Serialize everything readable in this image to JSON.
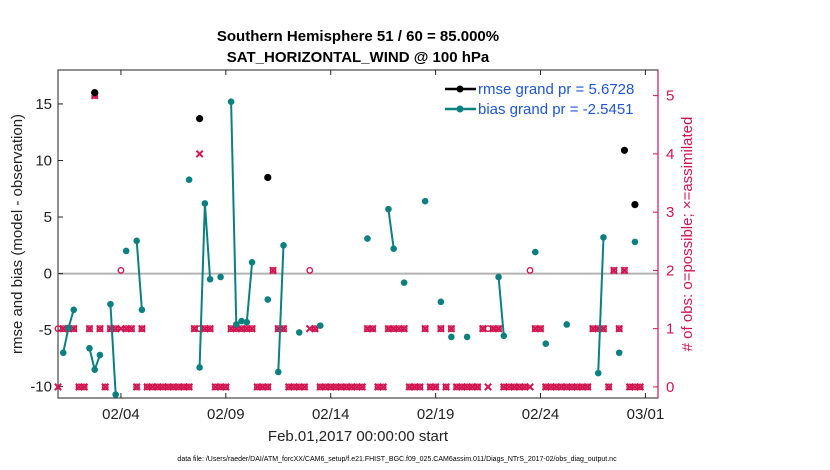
{
  "chart_data": {
    "type": "line",
    "title": "Southern Hemisphere 51 / 60 = 85.000%",
    "subtitle": "SAT_HORIZONTAL_WIND @ 100 hPa",
    "xlabel": "Feb.01,2017 00:00:00 start",
    "ylabel_left": "rmse and bias (model - observation)",
    "ylabel_right": "# of obs: o=possible; ×=assimilated",
    "footnote": "data file: /Users/raeder/DAI/ATM_forcXX/CAM6_setup/f.e21.FHIST_BGC.f09_025.CAM6assim.011/Diags_NTrS_2017-02/obs_diag_output.nc",
    "xlim": [
      0.0,
      28.6
    ],
    "ylim_left": [
      -11,
      18
    ],
    "ylim_right": [
      -0.19,
      5.44
    ],
    "x_ticks": [
      {
        "value": 3,
        "label": "02/04"
      },
      {
        "value": 8,
        "label": "02/09"
      },
      {
        "value": 13,
        "label": "02/14"
      },
      {
        "value": 18,
        "label": "02/19"
      },
      {
        "value": 23,
        "label": "02/24"
      },
      {
        "value": 28,
        "label": "03/01"
      }
    ],
    "y_ticks_left": [
      -10,
      -5,
      0,
      5,
      10,
      15
    ],
    "y_ticks_left_labels": [
      "-10",
      "-5",
      "0",
      "5",
      "10",
      "15"
    ],
    "y_ticks_right": [
      0,
      1,
      2,
      3,
      4,
      5
    ],
    "y_ticks_right_labels": [
      "0",
      "1",
      "2",
      "3",
      "4",
      "5"
    ],
    "legend": {
      "position": "top-right",
      "entries": [
        "rmse grand pr = 5.6728",
        "bias grand pr = -2.5451"
      ]
    },
    "colors": {
      "rmse": "#000000",
      "bias": "#0c8080",
      "obs": "#d11551",
      "zero_line": "#b4b4b4",
      "legend_text": "#1f55d6"
    },
    "series": [
      {
        "name": "rmse",
        "points": [
          [
            1.75,
            16.0
          ],
          [
            6.75,
            13.7
          ],
          [
            10.0,
            8.5
          ],
          [
            27.0,
            10.9
          ],
          [
            27.5,
            6.1
          ]
        ]
      },
      {
        "name": "bias",
        "segments": [
          [
            [
              0.25,
              -7.0
            ],
            [
              0.5,
              -4.8
            ],
            [
              0.75,
              -3.2
            ]
          ],
          [
            [
              1.5,
              -6.6
            ],
            [
              1.75,
              -8.5
            ],
            [
              2.0,
              -7.2
            ]
          ],
          [
            [
              2.5,
              -2.7
            ],
            [
              2.75,
              -10.7
            ]
          ],
          [
            [
              3.25,
              2.0
            ]
          ],
          [
            [
              3.75,
              2.9
            ],
            [
              4.0,
              -3.2
            ]
          ],
          [
            [
              6.25,
              8.3
            ]
          ],
          [
            [
              6.75,
              -8.3
            ],
            [
              7.0,
              6.2
            ],
            [
              7.25,
              -0.5
            ]
          ],
          [
            [
              7.75,
              -0.3
            ]
          ],
          [
            [
              8.25,
              15.2
            ],
            [
              8.5,
              -4.5
            ],
            [
              8.75,
              -4.2
            ],
            [
              9.0,
              -4.3
            ],
            [
              9.25,
              1.0
            ]
          ],
          [
            [
              10.0,
              -2.3
            ]
          ],
          [
            [
              10.5,
              -8.7
            ],
            [
              10.75,
              2.5
            ]
          ],
          [
            [
              11.5,
              -5.2
            ]
          ],
          [
            [
              12.5,
              -4.6
            ]
          ],
          [
            [
              14.75,
              3.1
            ]
          ],
          [
            [
              15.75,
              5.7
            ],
            [
              16.0,
              2.2
            ]
          ],
          [
            [
              16.5,
              -0.8
            ]
          ],
          [
            [
              17.5,
              6.4
            ]
          ],
          [
            [
              18.25,
              -2.5
            ]
          ],
          [
            [
              18.75,
              -5.6
            ]
          ],
          [
            [
              19.5,
              -5.6
            ]
          ],
          [
            [
              21.0,
              -0.3
            ],
            [
              21.25,
              -5.5
            ]
          ],
          [
            [
              22.75,
              1.9
            ]
          ],
          [
            [
              23.25,
              -6.2
            ]
          ],
          [
            [
              24.25,
              -4.5
            ]
          ],
          [
            [
              25.75,
              -8.8
            ],
            [
              26.0,
              3.2
            ]
          ],
          [
            [
              26.75,
              -7.0
            ]
          ],
          [
            [
              27.5,
              2.8
            ]
          ]
        ]
      }
    ],
    "obs_counts": {
      "times": [
        0.0,
        0.25,
        0.5,
        0.75,
        1.0,
        1.25,
        1.5,
        1.75,
        2.0,
        2.25,
        2.5,
        2.75,
        3.0,
        3.25,
        3.5,
        3.75,
        4.0,
        4.25,
        4.5,
        4.75,
        5.0,
        5.25,
        5.5,
        5.75,
        6.0,
        6.25,
        6.5,
        6.75,
        7.0,
        7.25,
        7.5,
        7.75,
        8.0,
        8.25,
        8.5,
        8.75,
        9.0,
        9.25,
        9.5,
        9.75,
        10.0,
        10.25,
        10.5,
        10.75,
        11.0,
        11.25,
        11.5,
        11.75,
        12.0,
        12.25,
        12.5,
        12.75,
        13.0,
        13.25,
        13.5,
        13.75,
        14.0,
        14.25,
        14.5,
        14.75,
        15.0,
        15.25,
        15.5,
        15.75,
        16.0,
        16.25,
        16.5,
        16.75,
        17.0,
        17.25,
        17.5,
        17.75,
        18.0,
        18.25,
        18.5,
        18.75,
        19.0,
        19.25,
        19.5,
        19.75,
        20.0,
        20.25,
        20.5,
        20.75,
        21.0,
        21.25,
        21.5,
        21.75,
        22.0,
        22.25,
        22.5,
        22.75,
        23.0,
        23.25,
        23.5,
        23.75,
        24.0,
        24.25,
        24.5,
        24.75,
        25.0,
        25.25,
        25.5,
        25.75,
        26.0,
        26.25,
        26.5,
        26.75,
        27.0,
        27.25,
        27.5,
        27.75
      ],
      "possible": [
        1,
        1,
        1,
        1,
        0,
        0,
        1,
        5,
        1,
        0,
        1,
        1,
        2,
        1,
        1,
        0,
        1,
        0,
        0,
        0,
        0,
        0,
        0,
        0,
        0,
        0,
        1,
        1,
        1,
        1,
        0,
        0,
        0,
        1,
        1,
        1,
        1,
        1,
        0,
        0,
        0,
        2,
        1,
        1,
        0,
        0,
        0,
        0,
        2,
        1,
        0,
        0,
        0,
        0,
        0,
        0,
        0,
        0,
        0,
        1,
        1,
        0,
        0,
        1,
        1,
        1,
        1,
        0,
        0,
        0,
        1,
        0,
        0,
        1,
        0,
        1,
        0,
        0,
        0,
        0,
        0,
        1,
        1,
        1,
        1,
        0,
        0,
        0,
        0,
        0,
        2,
        1,
        1,
        0,
        0,
        0,
        0,
        0,
        0,
        0,
        0,
        0,
        1,
        1,
        1,
        0,
        2,
        1,
        2,
        0,
        0,
        0
      ],
      "assimilated": [
        0,
        1,
        1,
        1,
        0,
        0,
        1,
        5,
        1,
        0,
        1,
        1,
        1,
        1,
        1,
        0,
        1,
        0,
        0,
        0,
        0,
        0,
        0,
        0,
        0,
        0,
        1,
        4,
        1,
        1,
        0,
        0,
        0,
        1,
        1,
        1,
        1,
        1,
        0,
        0,
        0,
        2,
        1,
        1,
        0,
        0,
        0,
        0,
        1,
        1,
        0,
        0,
        0,
        0,
        0,
        0,
        0,
        0,
        0,
        1,
        1,
        0,
        0,
        1,
        1,
        1,
        1,
        0,
        0,
        0,
        1,
        0,
        0,
        1,
        0,
        1,
        0,
        0,
        0,
        0,
        0,
        1,
        0,
        1,
        1,
        0,
        0,
        0,
        0,
        0,
        0,
        1,
        1,
        0,
        0,
        0,
        0,
        0,
        0,
        0,
        0,
        0,
        1,
        1,
        1,
        0,
        2,
        1,
        2,
        0,
        0,
        0
      ]
    }
  }
}
